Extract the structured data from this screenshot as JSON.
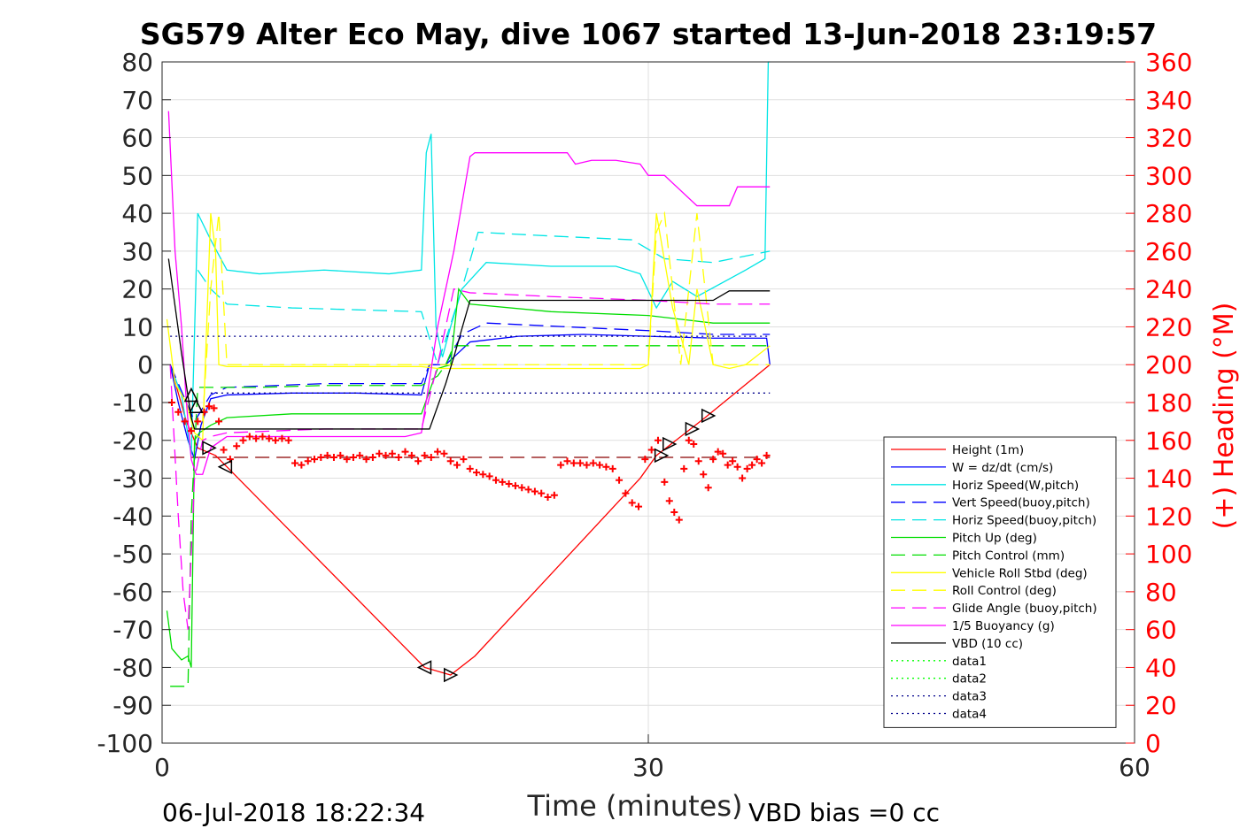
{
  "chart_data": {
    "type": "line",
    "title": "SG579 Alter Eco May, dive 1067 started 13-Jun-2018 23:19:57",
    "xlabel": "Time (minutes)",
    "ylabel_right": "(+) Heading (°M)",
    "xlim": [
      0,
      60
    ],
    "ylim": [
      -100,
      80
    ],
    "ylim_right": [
      0,
      360
    ],
    "x_ticks": [
      "0",
      "30",
      "60"
    ],
    "y_ticks": [
      "80",
      "70",
      "60",
      "50",
      "40",
      "30",
      "20",
      "10",
      "0",
      "-10",
      "-20",
      "-30",
      "-40",
      "-50",
      "-60",
      "-70",
      "-80",
      "-90",
      "-100"
    ],
    "y_right_ticks": [
      "360",
      "340",
      "320",
      "300",
      "280",
      "260",
      "240",
      "220",
      "200",
      "180",
      "160",
      "140",
      "120",
      "100",
      "80",
      "60",
      "40",
      "20",
      "0"
    ],
    "grid": true,
    "legend_position": "lower-right",
    "footer_left": "06-Jul-2018 18:22:34",
    "footer_right": "VBD bias =0 cc",
    "colors": {
      "red": "#ff0000",
      "blue": "#0000ff",
      "cyan": "#00e5e5",
      "green": "#00dd00",
      "yellow": "#ffff00",
      "magenta": "#ff00ff",
      "black": "#000000",
      "navy": "#00008b"
    },
    "series": [
      {
        "name": "Height (1m)",
        "color": "#ff0000",
        "style": "solid",
        "x": [
          0.5,
          1.5,
          2.2,
          3.3,
          4.0,
          16.2,
          17.8,
          19.3,
          29.5,
          30.5,
          33.5,
          37.5
        ],
        "y": [
          0,
          -15,
          -22,
          -24,
          -27,
          -80,
          -82,
          -77,
          -30,
          -24,
          -14,
          0
        ]
      },
      {
        "name": "W = dz/dt (cm/s)",
        "color": "#0000ff",
        "style": "solid",
        "x": [
          0.5,
          1.0,
          1.6,
          2.0,
          2.4,
          3.0,
          4.0,
          8.0,
          12.0,
          16.0,
          16.5,
          17.5,
          18.0,
          19.0,
          22.0,
          26.0,
          30.0,
          34.0,
          37.3,
          37.5
        ],
        "y": [
          0,
          -10,
          -20,
          -25,
          -16,
          -9,
          -8,
          -7.5,
          -7.5,
          -8,
          0,
          0,
          2,
          6,
          7.5,
          8,
          7.5,
          7,
          7,
          0
        ]
      },
      {
        "name": "Horiz Speed(W,pitch)",
        "color": "#00e5e5",
        "style": "solid",
        "x": [
          0.5,
          1.2,
          1.8,
          2.2,
          3.0,
          4.0,
          6.0,
          10.0,
          14.0,
          16.0,
          16.3,
          16.6,
          16.9,
          17.3,
          17.8,
          18.5,
          20.0,
          24.0,
          28.0,
          29.5,
          30.5,
          31.5,
          33.0,
          36.0,
          37.2,
          37.4,
          37.5
        ],
        "y": [
          0,
          -8,
          -24,
          40,
          33,
          25,
          24,
          25,
          24,
          25,
          56,
          61,
          10,
          2,
          10,
          20,
          27,
          26,
          26,
          24,
          15,
          22,
          18,
          25,
          28,
          80,
          80
        ]
      },
      {
        "name": "Vert Speed(buoy,pitch)",
        "color": "#0000ff",
        "style": "dashed",
        "x": [
          0.5,
          1.5,
          2.0,
          3.0,
          4.0,
          10.0,
          16.0,
          16.5,
          17.5,
          18.5,
          20.0,
          25.0,
          30.0,
          34.0,
          37.5
        ],
        "y": [
          0,
          -10,
          -15,
          -8,
          -6,
          -5,
          -5,
          0,
          0,
          8,
          11,
          10,
          9,
          8,
          8
        ]
      },
      {
        "name": "Horiz Speed(buoy,pitch)",
        "color": "#00e5e5",
        "style": "dashed",
        "x": [
          2.2,
          3.0,
          4.0,
          8.0,
          12.0,
          16.0,
          17.0,
          18.5,
          19.5,
          24.0,
          29.0,
          31.0,
          34.0,
          37.5
        ],
        "y": [
          25,
          20,
          16,
          15,
          14.5,
          14,
          0,
          20,
          35,
          34,
          33,
          28,
          27,
          30
        ]
      },
      {
        "name": "Pitch Up (deg)",
        "color": "#00dd00",
        "style": "solid",
        "x": [
          0.3,
          0.6,
          1.2,
          1.6,
          1.8,
          2.0,
          2.3,
          3.0,
          4.0,
          8.0,
          12.0,
          16.0,
          17.0,
          17.8,
          18.3,
          19.0,
          24.0,
          30.0,
          34.0,
          37.5
        ],
        "y": [
          -65,
          -75,
          -78,
          -77,
          -80,
          -20,
          -18,
          -16,
          -14,
          -13,
          -13,
          -13,
          -1,
          0,
          20,
          16,
          14,
          13,
          11,
          11
        ]
      },
      {
        "name": "Pitch Control (mm)",
        "color": "#00dd00",
        "style": "dashed",
        "x": [
          0.5,
          1.5,
          1.6,
          1.8,
          2.2,
          3.0,
          6.0,
          10.0,
          16.0,
          17.0,
          17.5,
          18.0,
          19.0,
          24.0,
          30.0,
          34.0,
          37.5
        ],
        "y": [
          -85,
          -85,
          -85,
          -40,
          -6,
          -6,
          -6,
          -5.5,
          -5.5,
          -3,
          0,
          5,
          5,
          5,
          5,
          5,
          5
        ]
      },
      {
        "name": "Vehicle Roll Stbd (deg)",
        "color": "#ffff00",
        "style": "solid",
        "x": [
          0.3,
          0.8,
          1.5,
          2.0,
          2.5,
          3.0,
          3.3,
          3.5,
          4.0,
          10.0,
          16.0,
          17.0,
          18.0,
          24.0,
          29.5,
          30.0,
          30.5,
          31.5,
          32.5,
          33.0,
          34.0,
          35.0,
          36.0,
          37.5
        ],
        "y": [
          12,
          -5,
          -10,
          -18,
          -20,
          40,
          30,
          0,
          -0.5,
          -0.5,
          -0.5,
          -1,
          -1,
          -1,
          -1,
          0,
          40,
          15,
          0,
          20,
          0,
          -1,
          0,
          5
        ]
      },
      {
        "name": "Roll Control (deg)",
        "color": "#ffff00",
        "style": "dashed",
        "x": [
          2.5,
          3.0,
          3.5,
          4.0,
          10.0,
          16.0,
          18.0,
          24.0,
          30.0,
          30.5,
          31.0,
          32.0,
          33.0,
          34.0,
          36.0,
          37.5
        ],
        "y": [
          -15,
          20,
          40,
          0,
          0,
          0,
          0,
          0,
          0,
          35,
          40,
          0,
          40,
          0,
          0,
          0
        ]
      },
      {
        "name": "Glide Angle (buoy,pitch)",
        "color": "#ff00ff",
        "style": "dashed",
        "x": [
          0.5,
          1.0,
          1.3,
          1.6,
          2.0,
          2.5,
          3.0,
          4.0,
          10.0,
          16.0,
          17.0,
          18.0,
          19.0,
          24.0,
          30.0,
          34.0,
          37.5
        ],
        "y": [
          0,
          -40,
          -60,
          -70,
          -30,
          -20,
          -19,
          -18,
          -17,
          -17,
          0,
          20,
          19,
          18,
          17,
          16,
          16
        ]
      },
      {
        "name": "1/5 Buoyancy (g)",
        "color": "#ff00ff",
        "style": "solid",
        "x": [
          0.4,
          0.8,
          1.2,
          1.5,
          1.8,
          2.1,
          2.5,
          3.0,
          4.0,
          10.0,
          15.0,
          16.0,
          17.0,
          18.0,
          19.0,
          19.3,
          20.0,
          25.0,
          25.5,
          26.5,
          28.0,
          29.5,
          30.0,
          31.0,
          33.0,
          35.0,
          35.5,
          37.5
        ],
        "y": [
          67,
          30,
          10,
          -10,
          -25,
          -29,
          -29,
          -22,
          -19,
          -19,
          -19,
          -18,
          10,
          30,
          55,
          56,
          56,
          56,
          53,
          54,
          54,
          53,
          50,
          50,
          42,
          42,
          47,
          47
        ]
      },
      {
        "name": "VBD (10 cc)",
        "color": "#000000",
        "style": "solid",
        "x": [
          0.4,
          1.2,
          1.8,
          2.0,
          2.5,
          3.0,
          4.0,
          10.0,
          16.0,
          16.5,
          17.5,
          18.0,
          19.0,
          20.0,
          30.0,
          33.0,
          34.0,
          35.0,
          37.5
        ],
        "y": [
          28,
          3,
          -14,
          -17,
          -17,
          -17,
          -17,
          -17,
          -17,
          -17,
          -5,
          2,
          17,
          17,
          17,
          17,
          17,
          19.5,
          19.5
        ]
      },
      {
        "name": "data1",
        "color": "#00ff00",
        "style": "dotted",
        "x": [],
        "y": []
      },
      {
        "name": "data2",
        "color": "#00ff00",
        "style": "dotted",
        "x": [],
        "y": []
      },
      {
        "name": "data3",
        "color": "#00008b",
        "style": "dotted",
        "x": [
          0.5,
          37.5
        ],
        "y": [
          7.5,
          7.5
        ]
      },
      {
        "name": "data4",
        "color": "#00008b",
        "style": "dotted",
        "x": [
          3.0,
          37.5
        ],
        "y": [
          -7.5,
          -7.5
        ]
      }
    ],
    "reference_line": {
      "color": "#8b0000",
      "style": "dashed",
      "x": [
        0.5,
        37.5
      ],
      "y": [
        -24.5,
        -24.5
      ]
    },
    "heading_points": {
      "color": "#ff0000",
      "x": [
        0.6,
        1.0,
        1.4,
        1.8,
        2.2,
        2.6,
        2.9,
        3.2,
        3.5,
        3.8,
        4.2,
        4.6,
        5.0,
        5.4,
        5.8,
        6.2,
        6.6,
        7.0,
        7.4,
        7.8,
        8.2,
        8.6,
        9.0,
        9.4,
        9.8,
        10.2,
        10.6,
        11.0,
        11.4,
        11.8,
        12.2,
        12.6,
        13.0,
        13.4,
        13.8,
        14.2,
        14.6,
        15.0,
        15.4,
        15.8,
        16.2,
        16.6,
        17.0,
        17.4,
        17.8,
        18.2,
        18.6,
        19.0,
        19.4,
        19.8,
        20.2,
        20.6,
        21.0,
        21.4,
        21.8,
        22.2,
        22.6,
        23.0,
        23.4,
        23.8,
        24.2,
        24.6,
        25.0,
        25.4,
        25.8,
        26.2,
        26.6,
        27.0,
        27.4,
        27.8,
        28.2,
        28.6,
        29.0,
        29.4,
        29.8,
        30.2,
        30.6,
        31.0,
        31.3,
        31.6,
        31.9,
        32.2,
        32.5,
        32.8,
        33.1,
        33.4,
        33.7,
        34.0,
        34.3,
        34.6,
        34.9,
        35.2,
        35.5,
        35.8,
        36.1,
        36.4,
        36.7,
        37.0,
        37.3
      ],
      "y": [
        180,
        175,
        170,
        165,
        170,
        175,
        178,
        177,
        170,
        155,
        150,
        157,
        160,
        162,
        161,
        162,
        161,
        160,
        161,
        160,
        148,
        147,
        149,
        150,
        151,
        152,
        151,
        152,
        150,
        151,
        152,
        150,
        151,
        153,
        152,
        153,
        151,
        154,
        152,
        149,
        152,
        151,
        154,
        153,
        149,
        147,
        150,
        145,
        143,
        142,
        141,
        139,
        138,
        137,
        136,
        135,
        134,
        133,
        132,
        130,
        131,
        147,
        149,
        148,
        148,
        147,
        148,
        147,
        146,
        145,
        139,
        132,
        127,
        125,
        150,
        155,
        160,
        138,
        128,
        122,
        118,
        145,
        160,
        158,
        149,
        142,
        135,
        150,
        154,
        153,
        147,
        149,
        146,
        140,
        145,
        147,
        150,
        148,
        152
      ]
    },
    "triangle_markers": {
      "color": "#000000",
      "x": [
        1.8,
        2.1,
        3.9,
        2.9,
        16.2,
        17.8,
        30.8,
        31.3,
        32.7,
        33.7
      ],
      "y": [
        -8,
        -11,
        -27,
        -22,
        -80,
        -82,
        -24,
        -21,
        -17,
        -13.5
      ],
      "dir": [
        "up",
        "up",
        "left",
        "right",
        "left",
        "right",
        "right",
        "right",
        "right",
        "right"
      ]
    }
  }
}
